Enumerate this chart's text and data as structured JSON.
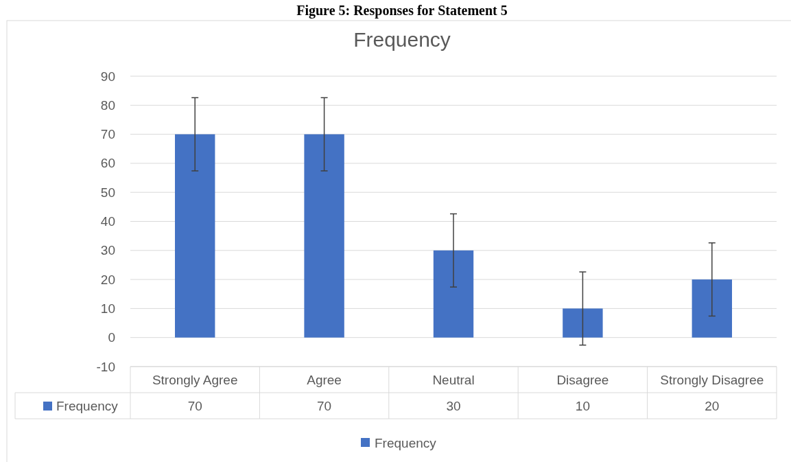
{
  "chart_data": {
    "type": "bar",
    "title": "Figure 5: Responses for Statement 5",
    "subtitle": "Frequency",
    "categories": [
      "Strongly Agree",
      "Agree",
      "Neutral",
      "Disagree",
      "Strongly Disagree"
    ],
    "series": [
      {
        "name": "Frequency",
        "color": "#4472c4",
        "values": [
          70,
          70,
          30,
          10,
          20
        ],
        "errors": [
          12.6,
          12.6,
          12.6,
          12.6,
          12.6
        ]
      }
    ],
    "ylim": [
      -10,
      90
    ],
    "yticks": [
      -10,
      0,
      10,
      20,
      30,
      40,
      50,
      60,
      70,
      80,
      90
    ],
    "grid": "y",
    "legend": "bottom",
    "data_labels": true
  }
}
